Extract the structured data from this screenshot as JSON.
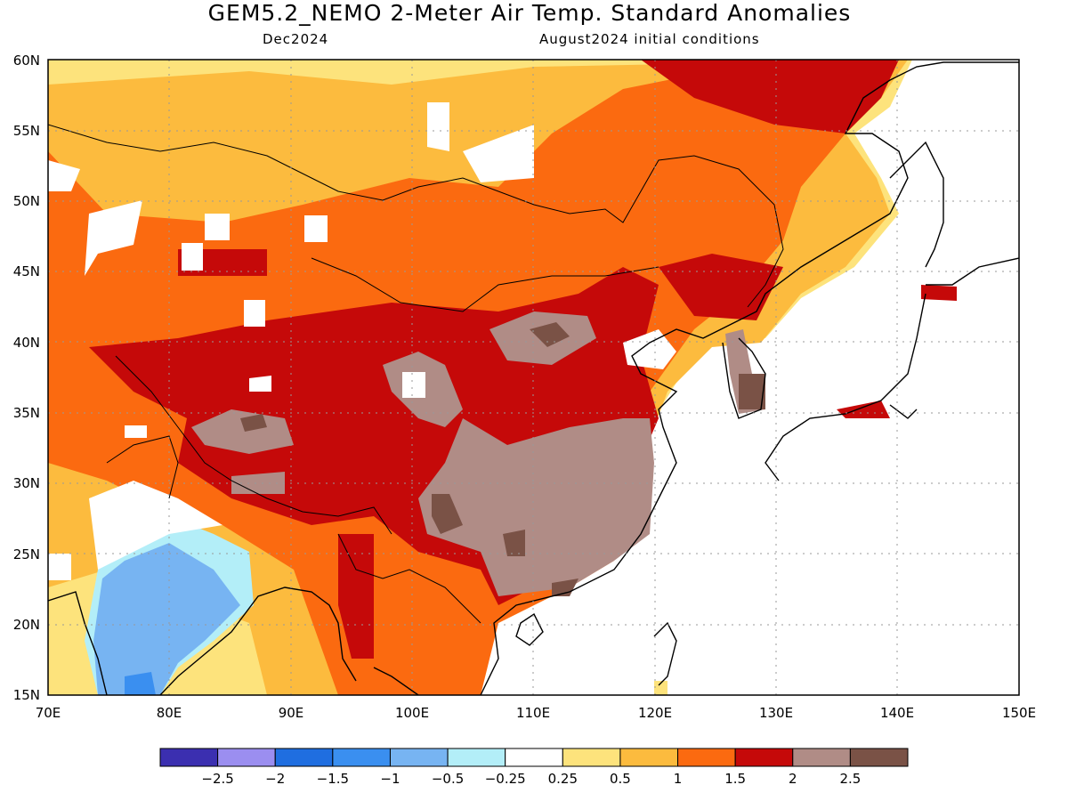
{
  "title": "GEM5.2_NEMO 2-Meter Air Temp. Standard Anomalies",
  "subtitle_left": "Dec2024",
  "subtitle_right": "August2024 initial conditions",
  "lat_labels": [
    "60N",
    "55N",
    "50N",
    "45N",
    "40N",
    "35N",
    "30N",
    "25N",
    "20N",
    "15N"
  ],
  "lon_labels": [
    "70E",
    "80E",
    "90E",
    "100E",
    "110E",
    "120E",
    "130E",
    "140E",
    "150E"
  ],
  "colorbar": {
    "colors": [
      "#3b2fb0",
      "#9b8ef0",
      "#1f6ee0",
      "#3a8ff0",
      "#77b4f2",
      "#b3eef8",
      "#ffffff",
      "#fde37c",
      "#fcbb3e",
      "#fb6a10",
      "#c50909",
      "#b08c86",
      "#7a5246"
    ],
    "labels": [
      "-2.5",
      "-2",
      "-1.5",
      "-1",
      "-0.5",
      "-0.25",
      "0.25",
      "0.5",
      "1",
      "1.5",
      "2",
      "2.5"
    ]
  }
}
